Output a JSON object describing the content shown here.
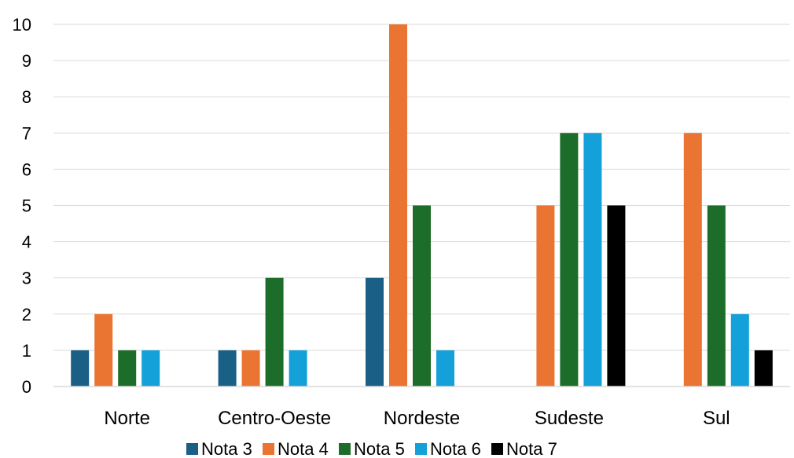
{
  "chart_data": {
    "type": "bar",
    "title": "",
    "xlabel": "",
    "ylabel": "",
    "categories": [
      "Norte",
      "Centro-Oeste",
      "Nordeste",
      "Sudeste",
      "Sul"
    ],
    "ylim": [
      0,
      10
    ],
    "yticks": [
      0,
      1,
      2,
      3,
      4,
      5,
      6,
      7,
      8,
      9,
      10
    ],
    "grid": true,
    "legend_position": "bottom",
    "series": [
      {
        "name": "Nota 3",
        "color": "#1a5f86",
        "values": [
          1,
          1,
          3,
          null,
          null
        ]
      },
      {
        "name": "Nota 4",
        "color": "#ea7432",
        "values": [
          2,
          1,
          10,
          5,
          7
        ]
      },
      {
        "name": "Nota 5",
        "color": "#1d6d2a",
        "values": [
          1,
          3,
          5,
          7,
          5
        ]
      },
      {
        "name": "Nota 6",
        "color": "#14a0d8",
        "values": [
          1,
          1,
          1,
          7,
          2
        ]
      },
      {
        "name": "Nota 7",
        "color": "#000000",
        "values": [
          null,
          null,
          null,
          5,
          1
        ]
      }
    ]
  }
}
